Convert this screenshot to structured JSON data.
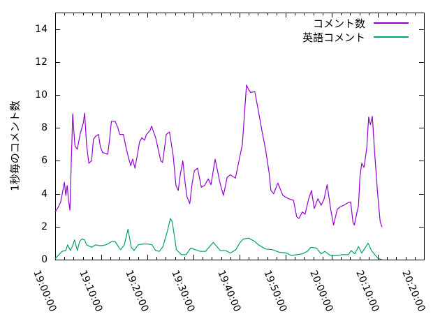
{
  "chart_data": {
    "type": "line",
    "title": "",
    "xlabel": "",
    "ylabel": "1秒毎のコメント数",
    "grid": false,
    "legend_position": "top-right-inside",
    "ylim": [
      0,
      15
    ],
    "ytick_values": [
      0,
      2,
      4,
      6,
      8,
      10,
      12,
      14
    ],
    "xlim_minutes_from_start": [
      0,
      80
    ],
    "xtick_minutes": [
      0,
      10,
      20,
      30,
      40,
      50,
      60,
      70,
      80
    ],
    "xtick_labels": [
      "19:00:00",
      "19:10:00",
      "19:20:00",
      "19:30:00",
      "19:40:00",
      "19:50:00",
      "20:00:00",
      "20:10:00",
      "20:20:00"
    ],
    "x_minor_tick_step_minutes": 2,
    "axis_color": "#000000",
    "series": [
      {
        "name": "コメント数",
        "color": "#9400d3",
        "points_min_val": [
          [
            0,
            2.9
          ],
          [
            0.6,
            3.15
          ],
          [
            1.2,
            3.5
          ],
          [
            1.6,
            4.1
          ],
          [
            2,
            4.7
          ],
          [
            2.3,
            3.9
          ],
          [
            2.6,
            4.5
          ],
          [
            2.9,
            3.6
          ],
          [
            3.2,
            3.0
          ],
          [
            3.5,
            6.0
          ],
          [
            3.8,
            8.85
          ],
          [
            4.1,
            7.6
          ],
          [
            4.3,
            6.9
          ],
          [
            4.8,
            6.7
          ],
          [
            5.4,
            7.6
          ],
          [
            5.8,
            8.0
          ],
          [
            6.1,
            8.3
          ],
          [
            6.4,
            8.9
          ],
          [
            6.8,
            7.0
          ],
          [
            7.3,
            5.85
          ],
          [
            7.9,
            6.0
          ],
          [
            8.3,
            7.3
          ],
          [
            8.8,
            7.5
          ],
          [
            9.4,
            7.6
          ],
          [
            9.8,
            6.85
          ],
          [
            10.3,
            6.5
          ],
          [
            11.0,
            6.45
          ],
          [
            11.4,
            6.4
          ],
          [
            11.8,
            7.3
          ],
          [
            12.2,
            8.4
          ],
          [
            13.0,
            8.4
          ],
          [
            13.6,
            8.0
          ],
          [
            14.0,
            7.6
          ],
          [
            14.8,
            7.6
          ],
          [
            15.3,
            6.9
          ],
          [
            15.9,
            6.2
          ],
          [
            16.4,
            5.7
          ],
          [
            16.8,
            6.1
          ],
          [
            17.3,
            5.55
          ],
          [
            17.9,
            6.45
          ],
          [
            18.3,
            7.15
          ],
          [
            18.8,
            7.4
          ],
          [
            19.4,
            7.25
          ],
          [
            19.8,
            7.6
          ],
          [
            20.6,
            7.85
          ],
          [
            20.9,
            8.1
          ],
          [
            21.8,
            7.4
          ],
          [
            22.9,
            6.0
          ],
          [
            23.3,
            5.9
          ],
          [
            24.1,
            7.6
          ],
          [
            24.8,
            7.75
          ],
          [
            25.6,
            6.3
          ],
          [
            26.2,
            4.5
          ],
          [
            26.7,
            4.2
          ],
          [
            27.1,
            5.1
          ],
          [
            27.7,
            6.0
          ],
          [
            28.2,
            4.65
          ],
          [
            28.6,
            3.8
          ],
          [
            29.2,
            3.4
          ],
          [
            29.7,
            4.6
          ],
          [
            30.2,
            5.4
          ],
          [
            30.9,
            5.55
          ],
          [
            31.7,
            4.4
          ],
          [
            32.4,
            4.5
          ],
          [
            33.2,
            4.9
          ],
          [
            33.8,
            4.55
          ],
          [
            34.7,
            6.1
          ],
          [
            35.8,
            4.6
          ],
          [
            36.5,
            3.9
          ],
          [
            37.3,
            5.0
          ],
          [
            38.0,
            5.15
          ],
          [
            39.1,
            4.95
          ],
          [
            39.8,
            5.9
          ],
          [
            40.6,
            7.0
          ],
          [
            41.1,
            9.0
          ],
          [
            41.5,
            10.6
          ],
          [
            42.0,
            10.3
          ],
          [
            42.4,
            10.15
          ],
          [
            43.3,
            10.2
          ],
          [
            44.1,
            9.0
          ],
          [
            44.8,
            7.9
          ],
          [
            45.6,
            6.75
          ],
          [
            46.4,
            5.3
          ],
          [
            46.8,
            4.2
          ],
          [
            47.4,
            4.0
          ],
          [
            48.3,
            4.65
          ],
          [
            49.4,
            3.9
          ],
          [
            50.6,
            3.7
          ],
          [
            51.7,
            3.6
          ],
          [
            52.4,
            2.6
          ],
          [
            52.9,
            2.5
          ],
          [
            53.6,
            2.9
          ],
          [
            54.2,
            2.75
          ],
          [
            55.0,
            3.7
          ],
          [
            55.6,
            4.2
          ],
          [
            56.2,
            3.1
          ],
          [
            57.0,
            3.7
          ],
          [
            57.7,
            3.3
          ],
          [
            58.3,
            3.65
          ],
          [
            59.0,
            4.55
          ],
          [
            59.8,
            3.0
          ],
          [
            60.4,
            2.1
          ],
          [
            61.2,
            3.05
          ],
          [
            61.8,
            3.2
          ],
          [
            62.6,
            3.3
          ],
          [
            63.5,
            3.45
          ],
          [
            64.1,
            3.5
          ],
          [
            64.6,
            2.25
          ],
          [
            64.9,
            2.1
          ],
          [
            65.8,
            3.3
          ],
          [
            66.1,
            5.0
          ],
          [
            66.5,
            5.85
          ],
          [
            67.0,
            5.6
          ],
          [
            67.6,
            6.8
          ],
          [
            68.0,
            8.65
          ],
          [
            68.4,
            8.2
          ],
          [
            68.8,
            8.7
          ],
          [
            69.3,
            6.5
          ],
          [
            69.9,
            4.2
          ],
          [
            70.5,
            2.3
          ],
          [
            70.9,
            2.0
          ]
        ]
      },
      {
        "name": "英語コメント",
        "color": "#009e73",
        "points_min_val": [
          [
            0,
            0.05
          ],
          [
            0.8,
            0.3
          ],
          [
            1.5,
            0.5
          ],
          [
            2.3,
            0.55
          ],
          [
            2.7,
            0.9
          ],
          [
            3.3,
            0.55
          ],
          [
            3.8,
            0.85
          ],
          [
            4.2,
            1.2
          ],
          [
            4.8,
            0.55
          ],
          [
            5.3,
            1.1
          ],
          [
            5.8,
            1.25
          ],
          [
            6.4,
            1.2
          ],
          [
            6.8,
            0.9
          ],
          [
            7.9,
            0.75
          ],
          [
            8.8,
            0.9
          ],
          [
            9.5,
            0.85
          ],
          [
            10.2,
            0.85
          ],
          [
            11.0,
            0.9
          ],
          [
            12.3,
            1.1
          ],
          [
            13.0,
            1.1
          ],
          [
            13.8,
            0.75
          ],
          [
            14.2,
            0.6
          ],
          [
            15.0,
            0.9
          ],
          [
            15.8,
            1.85
          ],
          [
            16.5,
            0.75
          ],
          [
            17.1,
            0.55
          ],
          [
            18.0,
            0.9
          ],
          [
            19.0,
            0.95
          ],
          [
            20.2,
            0.95
          ],
          [
            21.0,
            0.9
          ],
          [
            21.8,
            0.55
          ],
          [
            22.6,
            0.5
          ],
          [
            23.4,
            0.8
          ],
          [
            24.3,
            1.7
          ],
          [
            25.0,
            2.5
          ],
          [
            25.4,
            2.3
          ],
          [
            26.3,
            0.6
          ],
          [
            27.4,
            0.3
          ],
          [
            28.4,
            0.3
          ],
          [
            29.4,
            0.7
          ],
          [
            30.4,
            0.6
          ],
          [
            31.5,
            0.5
          ],
          [
            32.6,
            0.5
          ],
          [
            34.3,
            1.05
          ],
          [
            35.8,
            0.55
          ],
          [
            37.0,
            0.55
          ],
          [
            38.0,
            0.4
          ],
          [
            39.2,
            0.6
          ],
          [
            40.0,
            1.0
          ],
          [
            40.8,
            1.25
          ],
          [
            42.0,
            1.3
          ],
          [
            43.3,
            1.1
          ],
          [
            44.1,
            0.9
          ],
          [
            45.6,
            0.65
          ],
          [
            47.1,
            0.6
          ],
          [
            48.6,
            0.45
          ],
          [
            50.2,
            0.4
          ],
          [
            51.2,
            0.25
          ],
          [
            52.4,
            0.3
          ],
          [
            53.6,
            0.35
          ],
          [
            54.7,
            0.5
          ],
          [
            55.5,
            0.75
          ],
          [
            56.7,
            0.7
          ],
          [
            57.7,
            0.35
          ],
          [
            58.5,
            0.5
          ],
          [
            59.7,
            0.25
          ],
          [
            61.2,
            0.25
          ],
          [
            62.3,
            0.3
          ],
          [
            63.6,
            0.3
          ],
          [
            64.2,
            0.55
          ],
          [
            65.0,
            0.35
          ],
          [
            65.8,
            0.8
          ],
          [
            66.5,
            0.4
          ],
          [
            67.9,
            1.0
          ],
          [
            68.6,
            0.55
          ],
          [
            69.8,
            0.15
          ],
          [
            70.3,
            0.05
          ],
          [
            70.9,
            0.0
          ]
        ]
      }
    ],
    "legend": {
      "entries": [
        {
          "label": "コメント数",
          "color": "#9400d3"
        },
        {
          "label": "英語コメント",
          "color": "#009e73"
        }
      ]
    }
  }
}
